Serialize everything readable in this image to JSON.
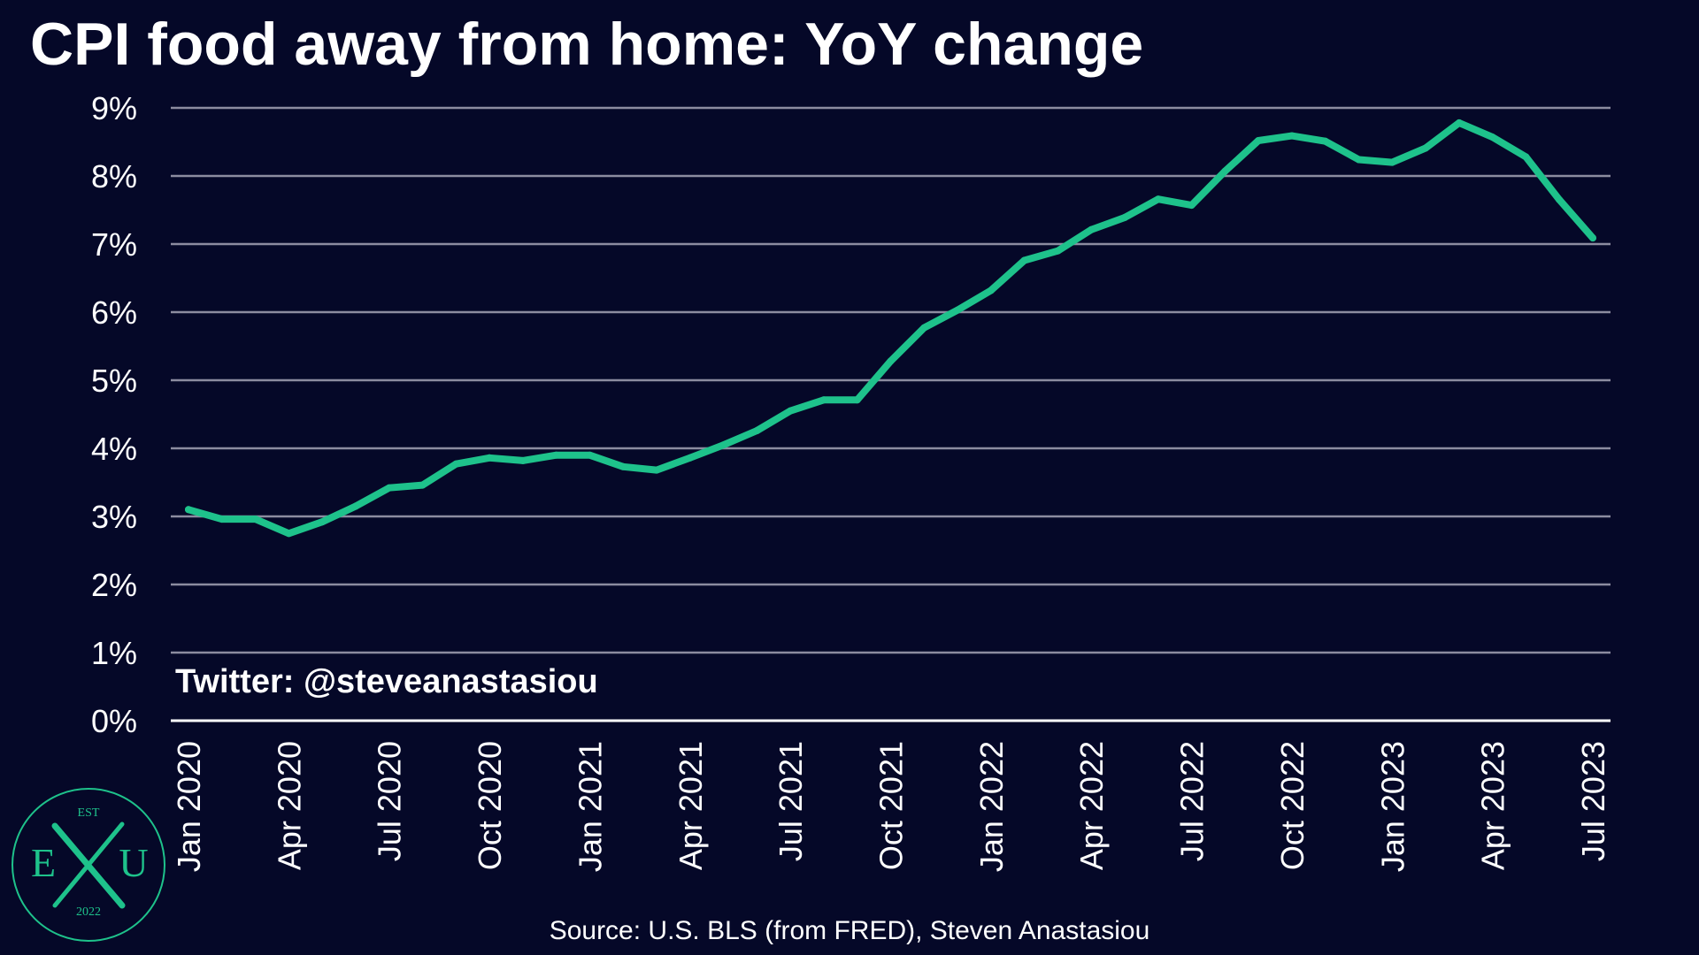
{
  "page": {
    "title": "CPI food away from home: YoY change",
    "watermark": "Twitter: @steveanastasiou",
    "source": "Source: U.S. BLS (from FRED), Steven Anastasiou"
  },
  "logo": {
    "top": "EST",
    "left_letter": "E",
    "right_letter": "U",
    "bottom": "2022"
  },
  "colors": {
    "background": "#050828",
    "line": "#1ec28b",
    "grid": "#8c8ca0",
    "text": "#ffffff",
    "logo": "#1ec28b"
  },
  "chart_data": {
    "type": "line",
    "title": "CPI food away from home: YoY change",
    "xlabel": "",
    "ylabel": "",
    "ylim": [
      0,
      9
    ],
    "grid": true,
    "y_ticks": [
      "0%",
      "1%",
      "2%",
      "3%",
      "4%",
      "5%",
      "6%",
      "7%",
      "8%",
      "9%"
    ],
    "x_tick_labels": [
      "Jan 2020",
      "Apr 2020",
      "Jul 2020",
      "Oct 2020",
      "Jan 2021",
      "Apr 2021",
      "Jul 2021",
      "Oct 2021",
      "Jan 2022",
      "Apr 2022",
      "Jul 2022",
      "Oct 2022",
      "Jan 2023",
      "Apr 2023",
      "Jul 2023"
    ],
    "x": [
      "Jan 2020",
      "Feb 2020",
      "Mar 2020",
      "Apr 2020",
      "May 2020",
      "Jun 2020",
      "Jul 2020",
      "Aug 2020",
      "Sep 2020",
      "Oct 2020",
      "Nov 2020",
      "Dec 2020",
      "Jan 2021",
      "Feb 2021",
      "Mar 2021",
      "Apr 2021",
      "May 2021",
      "Jun 2021",
      "Jul 2021",
      "Aug 2021",
      "Sep 2021",
      "Oct 2021",
      "Nov 2021",
      "Dec 2021",
      "Jan 2022",
      "Feb 2022",
      "Mar 2022",
      "Apr 2022",
      "May 2022",
      "Jun 2022",
      "Jul 2022",
      "Aug 2022",
      "Sep 2022",
      "Oct 2022",
      "Nov 2022",
      "Dec 2022",
      "Jan 2023",
      "Feb 2023",
      "Mar 2023",
      "Apr 2023",
      "May 2023",
      "Jun 2023",
      "Jul 2023"
    ],
    "series": [
      {
        "values": [
          3.1,
          2.96,
          2.96,
          2.75,
          2.92,
          3.15,
          3.42,
          3.46,
          3.77,
          3.86,
          3.82,
          3.9,
          3.9,
          3.73,
          3.68,
          3.86,
          4.05,
          4.26,
          4.55,
          4.71,
          4.71,
          5.28,
          5.77,
          6.03,
          6.32,
          6.76,
          6.9,
          7.21,
          7.39,
          7.66,
          7.57,
          8.07,
          8.52,
          8.59,
          8.51,
          8.24,
          8.2,
          8.41,
          8.78,
          8.57,
          8.28,
          7.65,
          7.09
        ]
      }
    ]
  }
}
